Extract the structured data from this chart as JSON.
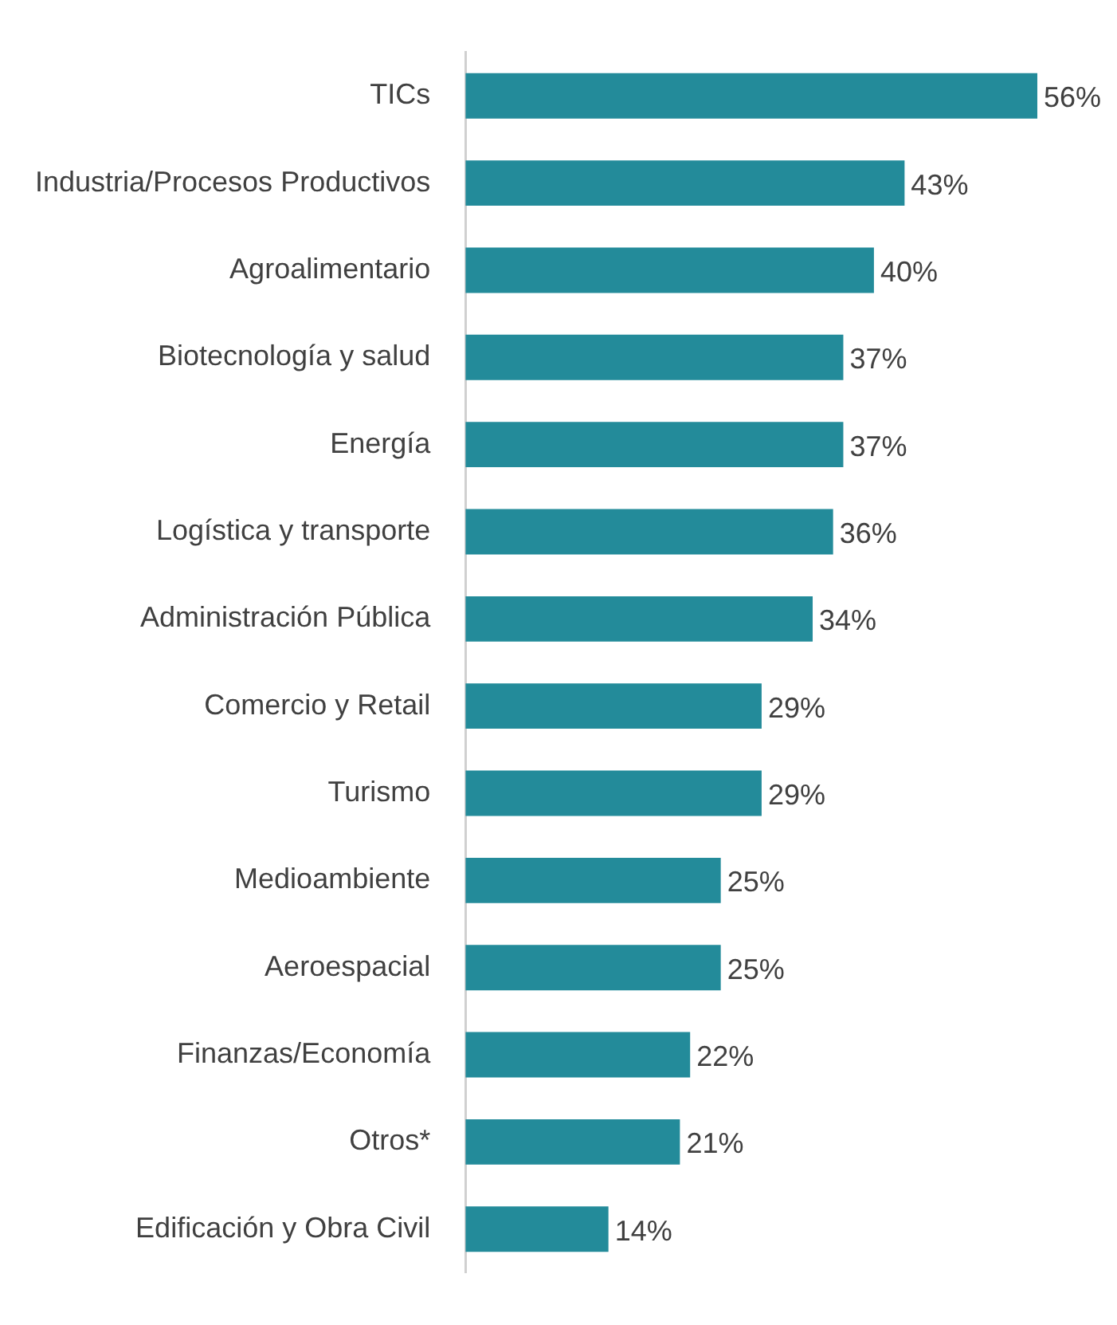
{
  "chart_data": {
    "type": "bar",
    "orientation": "horizontal",
    "categories": [
      "TICs",
      "Industria/Procesos Productivos",
      "Agroalimentario",
      "Biotecnología y salud",
      "Energía",
      "Logística y transporte",
      "Administración Pública",
      "Comercio y Retail",
      "Turismo",
      "Medioambiente",
      "Aeroespacial",
      "Finanzas/Economía",
      "Otros*",
      "Edificación y Obra Civil"
    ],
    "values": [
      56,
      43,
      40,
      37,
      37,
      36,
      34,
      29,
      29,
      25,
      25,
      22,
      21,
      14
    ],
    "value_labels": [
      "56%",
      "43%",
      "40%",
      "37%",
      "37%",
      "36%",
      "34%",
      "29%",
      "29%",
      "25%",
      "25%",
      "22%",
      "21%",
      "14%"
    ],
    "color": "#238b9a",
    "tick_labels": "y"
  }
}
